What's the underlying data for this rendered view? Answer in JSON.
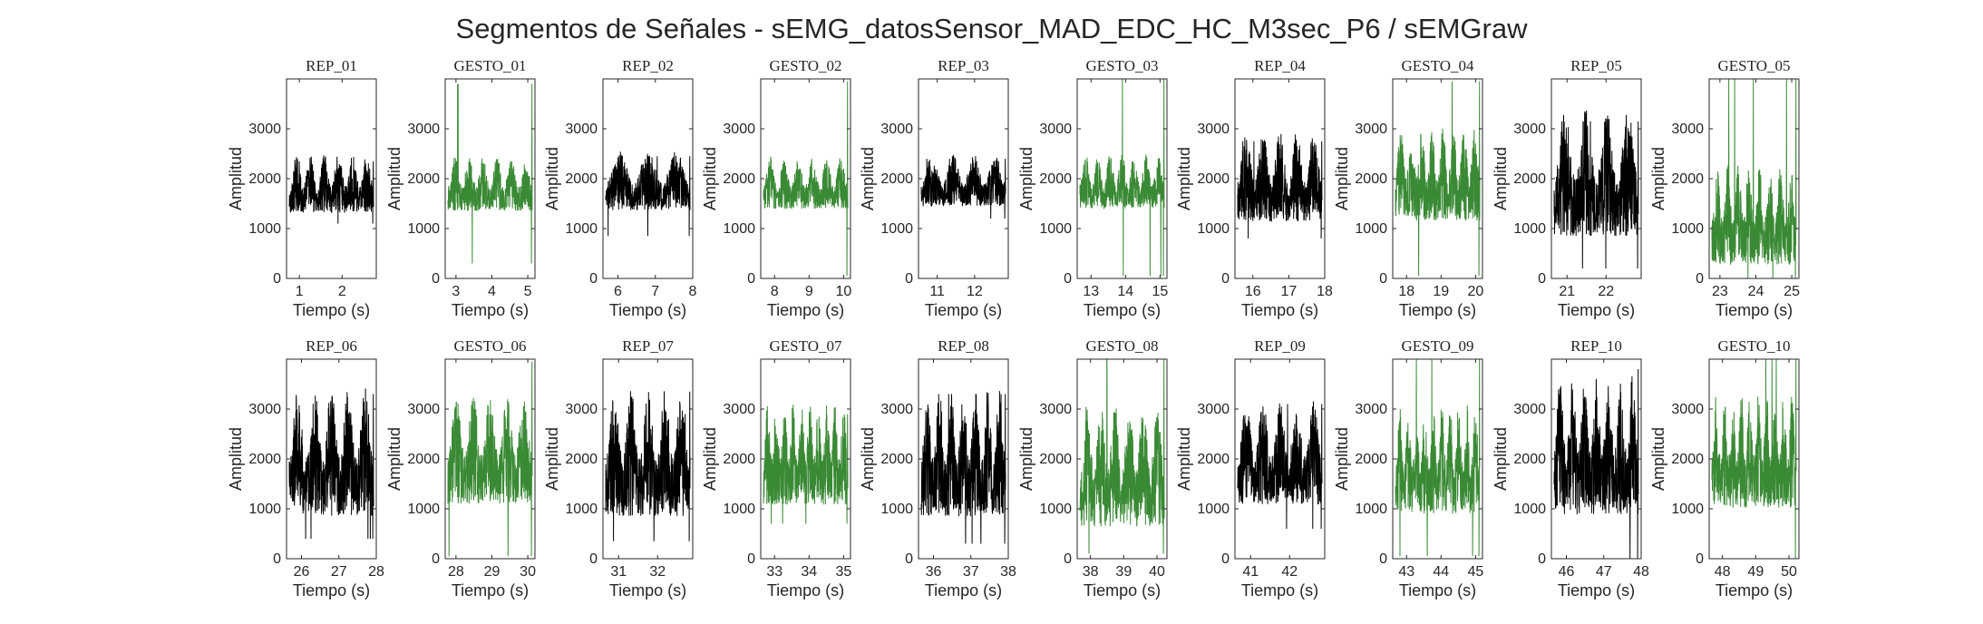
{
  "title": "Segmentos de Señales - sEMG_datosSensor_MAD_EDC_HC_M3sec_P6 / sEMGraw",
  "colors": {
    "rep": "#000000",
    "gesto": "#3a8a35",
    "axis": "#262626"
  },
  "chart_data": [
    {
      "type": "line",
      "title": "REP_01",
      "xlabel": "Tiempo (s)",
      "ylabel": "Amplitud",
      "xlim": [
        0.7,
        2.8
      ],
      "ylim": [
        0,
        4000
      ],
      "xticks": [
        1,
        2
      ],
      "yticks": [
        0,
        1000,
        2000,
        3000
      ],
      "series_color": "rep",
      "signal": {
        "oscillation_cycles": 6,
        "low": 1150,
        "high": 2350,
        "max": 2350,
        "min": 1100
      }
    },
    {
      "type": "line",
      "title": "GESTO_01",
      "xlabel": "Tiempo (s)",
      "ylabel": "Amplitud",
      "xlim": [
        2.7,
        5.2
      ],
      "ylim": [
        0,
        4000
      ],
      "xticks": [
        3,
        4,
        5
      ],
      "yticks": [
        0,
        1000,
        2000,
        3000
      ],
      "series_color": "gesto",
      "signal": {
        "oscillation_cycles": 6,
        "low": 1200,
        "high": 2300,
        "max": 3900,
        "min": 300
      }
    },
    {
      "type": "line",
      "title": "REP_02",
      "xlabel": "Tiempo (s)",
      "ylabel": "Amplitud",
      "xlim": [
        5.6,
        8.0
      ],
      "ylim": [
        0,
        4000
      ],
      "xticks": [
        6,
        7,
        8
      ],
      "yticks": [
        0,
        1000,
        2000,
        3000
      ],
      "series_color": "rep",
      "signal": {
        "oscillation_cycles": 3,
        "low": 1200,
        "high": 2400,
        "max": 2450,
        "min": 850
      }
    },
    {
      "type": "line",
      "title": "GESTO_02",
      "xlabel": "Tiempo (s)",
      "ylabel": "Amplitud",
      "xlim": [
        7.6,
        10.2
      ],
      "ylim": [
        0,
        4000
      ],
      "xticks": [
        8,
        9,
        10
      ],
      "yticks": [
        0,
        1000,
        2000,
        3000
      ],
      "series_color": "gesto",
      "signal": {
        "oscillation_cycles": 6,
        "low": 1250,
        "high": 2300,
        "max": 3950,
        "min": 50
      }
    },
    {
      "type": "line",
      "title": "REP_03",
      "xlabel": "Tiempo (s)",
      "ylabel": "Amplitud",
      "xlim": [
        10.5,
        12.9
      ],
      "ylim": [
        0,
        4000
      ],
      "xticks": [
        11,
        12
      ],
      "yticks": [
        0,
        1000,
        2000,
        3000
      ],
      "series_color": "rep",
      "signal": {
        "oscillation_cycles": 4,
        "low": 1300,
        "high": 2350,
        "max": 2400,
        "min": 1200
      }
    },
    {
      "type": "line",
      "title": "GESTO_03",
      "xlabel": "Tiempo (s)",
      "ylabel": "Amplitud",
      "xlim": [
        12.6,
        15.2
      ],
      "ylim": [
        0,
        4000
      ],
      "xticks": [
        13,
        14,
        15
      ],
      "yticks": [
        0,
        1000,
        2000,
        3000
      ],
      "series_color": "gesto",
      "signal": {
        "oscillation_cycles": 7,
        "low": 1250,
        "high": 2350,
        "max": 4000,
        "min": 50
      }
    },
    {
      "type": "line",
      "title": "REP_04",
      "xlabel": "Tiempo (s)",
      "ylabel": "Amplitud",
      "xlim": [
        15.5,
        18.0
      ],
      "ylim": [
        0,
        4000
      ],
      "xticks": [
        16,
        17,
        18
      ],
      "yticks": [
        0,
        1000,
        2000,
        3000
      ],
      "series_color": "rep",
      "signal": {
        "oscillation_cycles": 5,
        "low": 900,
        "high": 2700,
        "max": 2750,
        "min": 800
      }
    },
    {
      "type": "line",
      "title": "GESTO_04",
      "xlabel": "Tiempo (s)",
      "ylabel": "Amplitud",
      "xlim": [
        17.6,
        20.2
      ],
      "ylim": [
        0,
        4000
      ],
      "xticks": [
        18,
        19,
        20
      ],
      "yticks": [
        0,
        1000,
        2000,
        3000
      ],
      "series_color": "gesto",
      "signal": {
        "oscillation_cycles": 8,
        "low": 900,
        "high": 2800,
        "max": 3950,
        "min": 50
      }
    },
    {
      "type": "line",
      "title": "REP_05",
      "xlabel": "Tiempo (s)",
      "ylabel": "Amplitud",
      "xlim": [
        20.6,
        22.9
      ],
      "ylim": [
        0,
        4000
      ],
      "xticks": [
        21,
        22
      ],
      "yticks": [
        0,
        1000,
        2000,
        3000
      ],
      "series_color": "rep",
      "signal": {
        "oscillation_cycles": 4,
        "low": 500,
        "high": 3050,
        "max": 3150,
        "min": 200
      }
    },
    {
      "type": "line",
      "title": "GESTO_05",
      "xlabel": "Tiempo (s)",
      "ylabel": "Amplitud",
      "xlim": [
        22.7,
        25.2
      ],
      "ylim": [
        0,
        4000
      ],
      "xticks": [
        23,
        24,
        25
      ],
      "yticks": [
        0,
        1000,
        2000,
        3000
      ],
      "series_color": "gesto",
      "signal": {
        "oscillation_cycles": 8,
        "low": 0,
        "high": 2000,
        "max": 4000,
        "min": 0
      }
    },
    {
      "type": "line",
      "title": "REP_06",
      "xlabel": "Tiempo (s)",
      "ylabel": "Amplitud",
      "xlim": [
        25.6,
        28.0
      ],
      "ylim": [
        0,
        4000
      ],
      "xticks": [
        26,
        27,
        28
      ],
      "yticks": [
        0,
        1000,
        2000,
        3000
      ],
      "series_color": "rep",
      "signal": {
        "oscillation_cycles": 5,
        "low": 500,
        "high": 3100,
        "max": 3300,
        "min": 400
      }
    },
    {
      "type": "line",
      "title": "GESTO_06",
      "xlabel": "Tiempo (s)",
      "ylabel": "Amplitud",
      "xlim": [
        27.7,
        30.2
      ],
      "ylim": [
        0,
        4000
      ],
      "xticks": [
        28,
        29,
        30
      ],
      "yticks": [
        0,
        1000,
        2000,
        3000
      ],
      "series_color": "gesto",
      "signal": {
        "oscillation_cycles": 5,
        "low": 800,
        "high": 3000,
        "max": 3950,
        "min": 50
      }
    },
    {
      "type": "line",
      "title": "REP_07",
      "xlabel": "Tiempo (s)",
      "ylabel": "Amplitud",
      "xlim": [
        30.6,
        32.9
      ],
      "ylim": [
        0,
        4000
      ],
      "xticks": [
        31,
        32
      ],
      "yticks": [
        0,
        1000,
        2000,
        3000
      ],
      "series_color": "rep",
      "signal": {
        "oscillation_cycles": 5,
        "low": 500,
        "high": 3100,
        "max": 3350,
        "min": 350
      }
    },
    {
      "type": "line",
      "title": "GESTO_07",
      "xlabel": "Tiempo (s)",
      "ylabel": "Amplitud",
      "xlim": [
        32.6,
        35.2
      ],
      "ylim": [
        0,
        4000
      ],
      "xticks": [
        33,
        34,
        35
      ],
      "yticks": [
        0,
        1000,
        2000,
        3000
      ],
      "series_color": "gesto",
      "signal": {
        "oscillation_cycles": 10,
        "low": 800,
        "high": 2850,
        "max": 2900,
        "min": 700
      }
    },
    {
      "type": "line",
      "title": "REP_08",
      "xlabel": "Tiempo (s)",
      "ylabel": "Amplitud",
      "xlim": [
        35.6,
        38.0
      ],
      "ylim": [
        0,
        4000
      ],
      "xticks": [
        36,
        37,
        38
      ],
      "yticks": [
        0,
        1000,
        2000,
        3000
      ],
      "series_color": "rep",
      "signal": {
        "oscillation_cycles": 7,
        "low": 500,
        "high": 3050,
        "max": 3300,
        "min": 300
      }
    },
    {
      "type": "line",
      "title": "GESTO_08",
      "xlabel": "Tiempo (s)",
      "ylabel": "Amplitud",
      "xlim": [
        37.6,
        40.3
      ],
      "ylim": [
        0,
        4000
      ],
      "xticks": [
        38,
        39,
        40
      ],
      "yticks": [
        0,
        1000,
        2000,
        3000
      ],
      "series_color": "gesto",
      "signal": {
        "oscillation_cycles": 6,
        "low": 300,
        "high": 2800,
        "max": 4000,
        "min": 100
      }
    },
    {
      "type": "line",
      "title": "REP_09",
      "xlabel": "Tiempo (s)",
      "ylabel": "Amplitud",
      "xlim": [
        40.6,
        42.9
      ],
      "ylim": [
        0,
        4000
      ],
      "xticks": [
        41,
        42
      ],
      "yticks": [
        0,
        1000,
        2000,
        3000
      ],
      "series_color": "rep",
      "signal": {
        "oscillation_cycles": 5,
        "low": 800,
        "high": 2900,
        "max": 3100,
        "min": 600
      }
    },
    {
      "type": "line",
      "title": "GESTO_09",
      "xlabel": "Tiempo (s)",
      "ylabel": "Amplitud",
      "xlim": [
        42.6,
        45.2
      ],
      "ylim": [
        0,
        4000
      ],
      "xticks": [
        43,
        44,
        45
      ],
      "yticks": [
        0,
        1000,
        2000,
        3000
      ],
      "series_color": "gesto",
      "signal": {
        "oscillation_cycles": 10,
        "low": 600,
        "high": 2800,
        "max": 4000,
        "min": 50
      }
    },
    {
      "type": "line",
      "title": "REP_10",
      "xlabel": "Tiempo (s)",
      "ylabel": "Amplitud",
      "xlim": [
        45.6,
        48.0
      ],
      "ylim": [
        0,
        4000
      ],
      "xticks": [
        46,
        47,
        48
      ],
      "yticks": [
        0,
        1000,
        2000,
        3000
      ],
      "series_color": "rep",
      "signal": {
        "oscillation_cycles": 7,
        "low": 500,
        "high": 3300,
        "max": 3800,
        "min": 0
      }
    },
    {
      "type": "line",
      "title": "GESTO_10",
      "xlabel": "Tiempo (s)",
      "ylabel": "Amplitud",
      "xlim": [
        47.6,
        50.3
      ],
      "ylim": [
        0,
        4000
      ],
      "xticks": [
        48,
        49,
        50
      ],
      "yticks": [
        0,
        1000,
        2000,
        3000
      ],
      "series_color": "gesto",
      "signal": {
        "oscillation_cycles": 10,
        "low": 700,
        "high": 3000,
        "max": 4000,
        "min": 0
      }
    }
  ]
}
